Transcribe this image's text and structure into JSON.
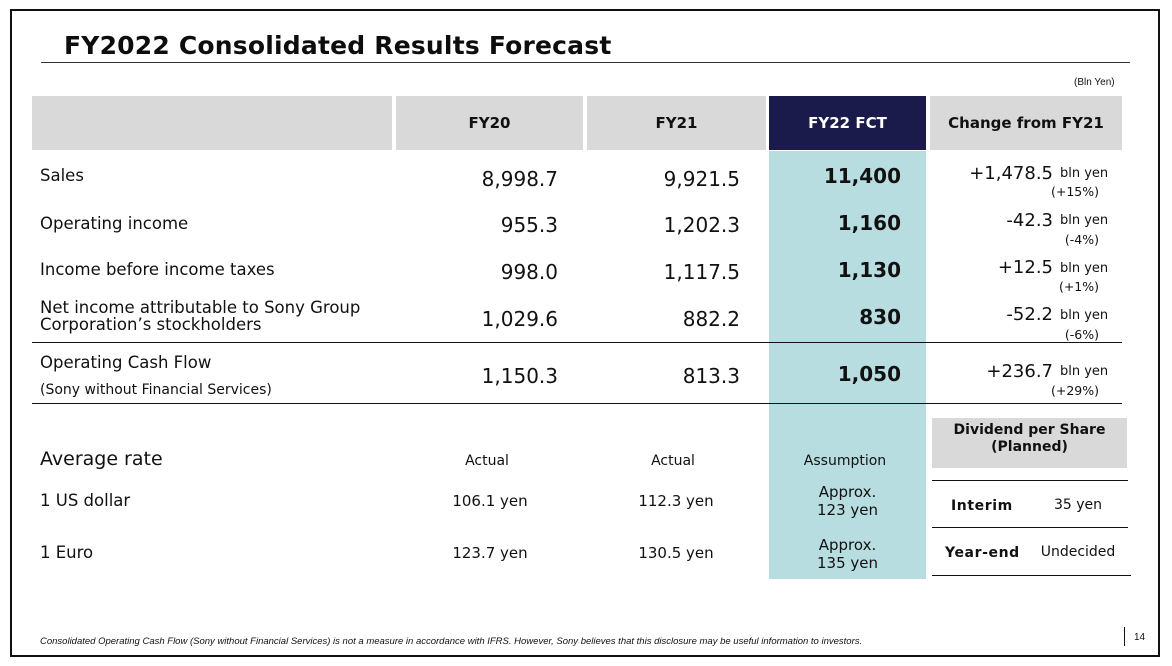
{
  "title": "FY2022 Consolidated Results Forecast",
  "unit_note": "(Bln Yen)",
  "columns": {
    "fy20": "FY20",
    "fy21": "FY21",
    "fy22": "FY22 FCT",
    "change": "Change from FY21"
  },
  "rows": [
    {
      "label": "Sales",
      "fy20": "8,998.7",
      "fy21": "9,921.5",
      "fy22": "11,400",
      "change": "+1,478.5",
      "change_unit": "bln yen",
      "change_pct": "(+15%)"
    },
    {
      "label": "Operating income",
      "fy20": "955.3",
      "fy21": "1,202.3",
      "fy22": "1,160",
      "change": "-42.3",
      "change_unit": "bln yen",
      "change_pct": "(-4%)"
    },
    {
      "label": "Income before income taxes",
      "fy20": "998.0",
      "fy21": "1,117.5",
      "fy22": "1,130",
      "change": "+12.5",
      "change_unit": "bln yen",
      "change_pct": "(+1%)"
    },
    {
      "label_line1": "Net income attributable to Sony Group",
      "label_line2": "Corporation’s stockholders",
      "fy20": "1,029.6",
      "fy21": "882.2",
      "fy22": "830",
      "change": "-52.2",
      "change_unit": "bln yen",
      "change_pct": "(-6%)"
    },
    {
      "label": "Operating Cash Flow",
      "sublabel": "(Sony without Financial Services)",
      "fy20": "1,150.3",
      "fy21": "813.3",
      "fy22": "1,050",
      "change": "+236.7",
      "change_unit": "bln yen",
      "change_pct": "(+29%)"
    }
  ],
  "rates": {
    "heading": "Average rate",
    "fy20_head": "Actual",
    "fy21_head": "Actual",
    "fy22_head": "Assumption",
    "usd": {
      "label": "1 US dollar",
      "fy20": "106.1 yen",
      "fy21": "112.3 yen",
      "fy22_line1": "Approx.",
      "fy22_line2": "123 yen"
    },
    "eur": {
      "label": "1 Euro",
      "fy20": "123.7 yen",
      "fy21": "130.5 yen",
      "fy22_line1": "Approx.",
      "fy22_line2": "135 yen"
    }
  },
  "dividend": {
    "heading_line1": "Dividend per Share",
    "heading_line2": "(Planned)",
    "interim_label": "Interim",
    "interim_value": "35 yen",
    "yearend_label": "Year-end",
    "yearend_value": "Undecided"
  },
  "footnote": "Consolidated Operating Cash Flow (Sony without Financial Services) is not a measure in accordance with IFRS.  However, Sony believes that this disclosure may be useful information to investors.",
  "page_number": "14",
  "colors": {
    "header_gray": "#d9d9d9",
    "fct_header": "#1b1b4b",
    "fct_column": "#b7dde1"
  }
}
